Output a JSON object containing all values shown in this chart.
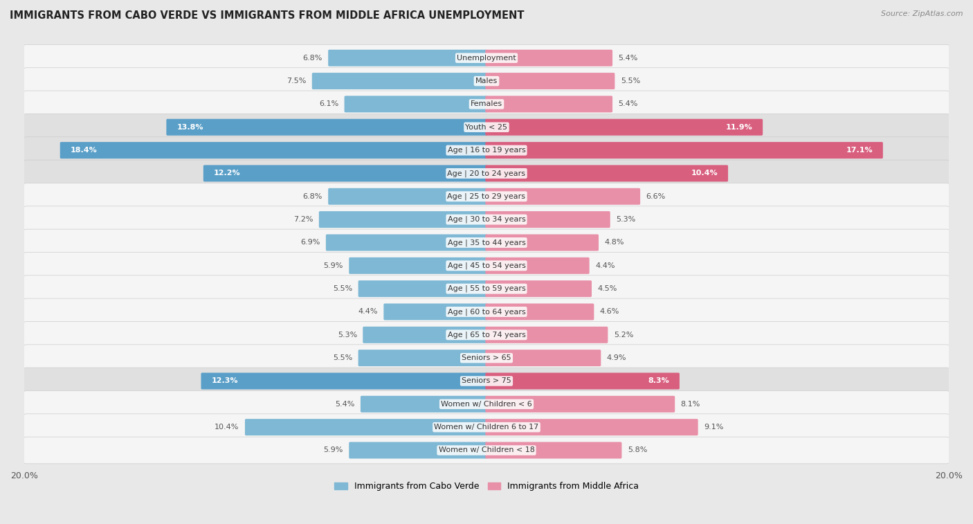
{
  "title": "IMMIGRANTS FROM CABO VERDE VS IMMIGRANTS FROM MIDDLE AFRICA UNEMPLOYMENT",
  "source": "Source: ZipAtlas.com",
  "categories": [
    "Unemployment",
    "Males",
    "Females",
    "Youth < 25",
    "Age | 16 to 19 years",
    "Age | 20 to 24 years",
    "Age | 25 to 29 years",
    "Age | 30 to 34 years",
    "Age | 35 to 44 years",
    "Age | 45 to 54 years",
    "Age | 55 to 59 years",
    "Age | 60 to 64 years",
    "Age | 65 to 74 years",
    "Seniors > 65",
    "Seniors > 75",
    "Women w/ Children < 6",
    "Women w/ Children 6 to 17",
    "Women w/ Children < 18"
  ],
  "cabo_verde": [
    6.8,
    7.5,
    6.1,
    13.8,
    18.4,
    12.2,
    6.8,
    7.2,
    6.9,
    5.9,
    5.5,
    4.4,
    5.3,
    5.5,
    12.3,
    5.4,
    10.4,
    5.9
  ],
  "middle_africa": [
    5.4,
    5.5,
    5.4,
    11.9,
    17.1,
    10.4,
    6.6,
    5.3,
    4.8,
    4.4,
    4.5,
    4.6,
    5.2,
    4.9,
    8.3,
    8.1,
    9.1,
    5.8
  ],
  "cabo_verde_color": "#7eb8d4",
  "middle_africa_color": "#e890a8",
  "cabo_verde_highlight_color": "#5a9fc8",
  "middle_africa_highlight_color": "#d95f7f",
  "highlight_rows": [
    3,
    4,
    5,
    14
  ],
  "background_color": "#e8e8e8",
  "row_bg_normal": "#f5f5f5",
  "row_bg_highlight": "#e0e0e0",
  "max_value": 20.0,
  "legend_cabo_verde": "Immigrants from Cabo Verde",
  "legend_middle_africa": "Immigrants from Middle Africa"
}
